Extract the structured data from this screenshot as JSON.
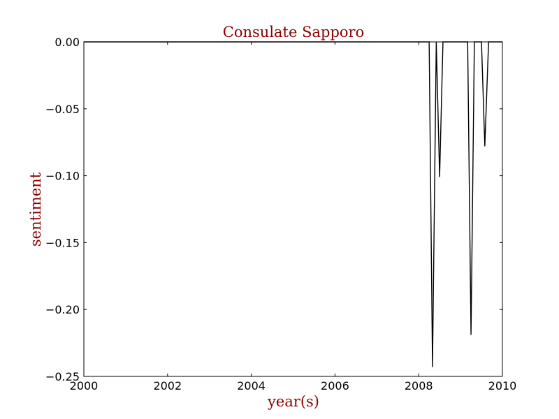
{
  "chart_data": {
    "type": "line",
    "title": "Consulate Sapporo",
    "xlabel": "year(s)",
    "ylabel": "sentiment",
    "xlim": [
      2000,
      2010
    ],
    "ylim": [
      -0.25,
      0.0
    ],
    "xticks": [
      2000,
      2002,
      2004,
      2006,
      2008,
      2010
    ],
    "xtick_labels": [
      "2000",
      "2002",
      "2004",
      "2006",
      "2008",
      "2010"
    ],
    "yticks": [
      0.0,
      -0.05,
      -0.1,
      -0.15,
      -0.2,
      -0.25
    ],
    "ytick_labels": [
      "0.00",
      "−0.05",
      "−0.10",
      "−0.15",
      "−0.20",
      "−0.25"
    ],
    "grid": false,
    "series": [
      {
        "color": "#000000",
        "x": [
          2000.0,
          2008.25,
          2008.33,
          2008.42,
          2008.5,
          2008.58,
          2009.17,
          2009.25,
          2009.33,
          2009.5,
          2009.58,
          2009.67,
          2010.0
        ],
        "y": [
          0.0,
          0.0,
          -0.243,
          0.0,
          -0.101,
          0.0,
          0.0,
          -0.219,
          0.0,
          0.0,
          -0.078,
          0.0,
          0.0
        ]
      }
    ],
    "title_color": "#8b0000",
    "label_color": "#8b0000"
  }
}
